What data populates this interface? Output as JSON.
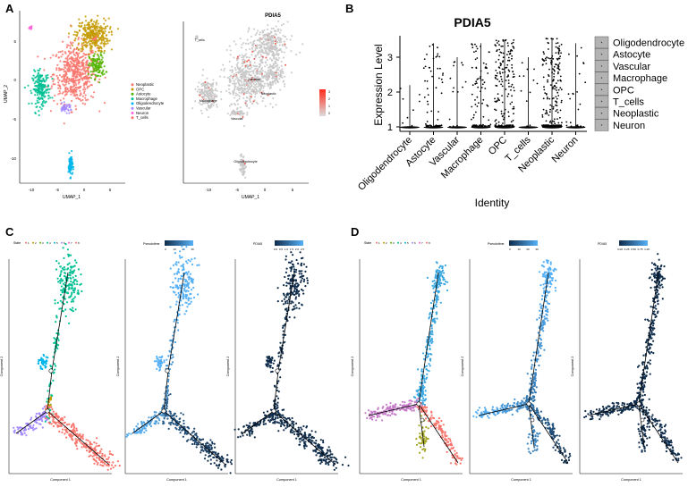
{
  "panels": {
    "a": "A",
    "b": "B",
    "c": "C",
    "d": "D"
  },
  "colors": {
    "neoplastic": "#f8766d",
    "opc": "#c49a00",
    "astocyte": "#53b400",
    "macrophage": "#00c094",
    "oligodendrocyte": "#00b6eb",
    "vascular": "#a58aff",
    "neuron": "#fb61d7",
    "t_cells": "#f8766d",
    "grey": "#c8c8c8",
    "dark_navy": "#0f2c4a",
    "light_blue": "#56b1f7",
    "state1": "#f8766d",
    "state2": "#c49a00",
    "state3": "#53b400",
    "state4": "#00c094",
    "state5": "#00b6eb",
    "state6": "#a58aff",
    "state7": "#fb61d7",
    "state_d_left": "#c77cc9",
    "state_d_bottom": "#a3a524",
    "state_d_red": "#f8766d",
    "state_d_blue": "#3ba7e0"
  },
  "chart_data": [
    {
      "type": "scatter",
      "id": "umap-clusters",
      "title": "",
      "xlabel": "UMAP_1",
      "ylabel": "UMAP_2",
      "xticks": [
        "-10",
        "-5",
        "0",
        "5"
      ],
      "yticks": [
        "5",
        "0",
        "-5",
        "-10"
      ],
      "xlim": [
        -13,
        8
      ],
      "ylim": [
        -13,
        9
      ],
      "legend": [
        "Neoplastic",
        "OPC",
        "Astocyte",
        "Macrophage",
        "Oligodendrocyte",
        "Vascular",
        "Neuron",
        "T_cells"
      ],
      "clusters": [
        {
          "name": "Neoplastic",
          "center": [
            -2,
            1
          ],
          "spread": [
            4,
            3.5
          ],
          "count": 520
        },
        {
          "name": "OPC",
          "center": [
            1.5,
            6
          ],
          "spread": [
            3,
            2
          ],
          "count": 320
        },
        {
          "name": "Astocyte",
          "center": [
            2.5,
            2
          ],
          "spread": [
            1.5,
            1.5
          ],
          "count": 120
        },
        {
          "name": "Macrophage",
          "center": [
            -9,
            -1
          ],
          "spread": [
            1.6,
            2
          ],
          "count": 200
        },
        {
          "name": "Oligodendrocyte",
          "center": [
            -3,
            -11
          ],
          "spread": [
            0.4,
            1.3
          ],
          "count": 70
        },
        {
          "name": "Vascular",
          "center": [
            -4,
            -3.5
          ],
          "spread": [
            1.2,
            0.5
          ],
          "count": 40
        },
        {
          "name": "Neuron",
          "center": [
            -11,
            7
          ],
          "spread": [
            0.3,
            0.3
          ],
          "count": 10
        },
        {
          "name": "T_cells",
          "center": [
            2,
            5.5
          ],
          "spread": [
            0.3,
            0.3
          ],
          "count": 8
        }
      ]
    },
    {
      "type": "scatter",
      "id": "umap-pdia5",
      "title": "PDIA5",
      "xlabel": "UMAP_1",
      "ylabel": "",
      "xticks": [
        "-10",
        "-5",
        "0",
        "5"
      ],
      "legend_scale": [
        "3",
        "2",
        "1",
        "0"
      ],
      "labels": [
        "T_cells",
        "Macrophage",
        "Vascular",
        "Astocyte",
        "Neoplastic",
        "Oligodendrocyte"
      ]
    },
    {
      "type": "violin",
      "id": "violin-pdia5",
      "title": "PDIA5",
      "xlabel": "Identity",
      "ylabel": "Expression Level",
      "yticks": [
        "3",
        "2",
        "1"
      ],
      "ylim": [
        0.9,
        3.6
      ],
      "categories": [
        "Oligodendrocyte",
        "Astocyte",
        "Vascular",
        "Macrophage",
        "OPC",
        "T_cells",
        "Neoplastic",
        "Neuron"
      ],
      "max_values": [
        2.2,
        3.4,
        3.0,
        3.4,
        3.5,
        3.0,
        3.55,
        3.4
      ],
      "point_counts": [
        8,
        60,
        15,
        90,
        200,
        12,
        230,
        25
      ],
      "legend": [
        "Oligodendrocyte",
        "Astocyte",
        "Vascular",
        "Macrophage",
        "OPC",
        "T_cells",
        "Neoplastic",
        "Neuron"
      ]
    },
    {
      "type": "trajectory",
      "id": "trajectory-c",
      "subplots": [
        {
          "legend_title": "State",
          "legend_values": [
            "1",
            "2",
            "3",
            "4",
            "5",
            "6",
            "7",
            "8"
          ]
        },
        {
          "legend_title": "Pseudotime",
          "legend_values": [
            "0",
            "10",
            "20",
            "30"
          ]
        },
        {
          "legend_title": "PDIA5",
          "legend_values": [
            "0.0",
            "0.5",
            "1.0",
            "1.5",
            "2.0",
            "2.5"
          ]
        }
      ],
      "xlabel": "Component 1",
      "ylabel": "Component 2"
    },
    {
      "type": "trajectory",
      "id": "trajectory-d",
      "subplots": [
        {
          "legend_title": "State",
          "legend_values": [
            "1",
            "2",
            "3",
            "4",
            "5",
            "6",
            "7",
            "8"
          ]
        },
        {
          "legend_title": "Pseudotime",
          "legend_values": [
            "0",
            "10",
            "20",
            "30"
          ]
        },
        {
          "legend_title": "PDIA5",
          "legend_values": [
            "0.00",
            "0.25",
            "0.50",
            "0.75",
            "1.00"
          ]
        }
      ],
      "xlabel": "Component 1",
      "ylabel": "Component 2"
    }
  ]
}
